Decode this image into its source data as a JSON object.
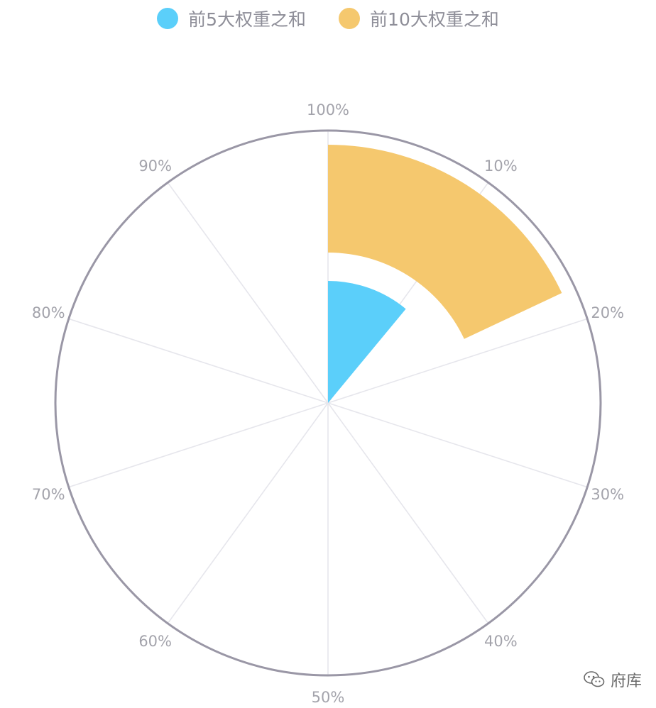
{
  "chart_data": {
    "type": "polar-bar",
    "series": [
      {
        "name": "前5大权重之和",
        "value": 11,
        "color": "#5bcffa"
      },
      {
        "name": "前10大权重之和",
        "value": 18,
        "color": "#f5c86e"
      }
    ],
    "tick_labels": [
      "100%",
      "10%",
      "20%",
      "30%",
      "40%",
      "50%",
      "60%",
      "70%",
      "80%",
      "90%"
    ],
    "angle_range": [
      0,
      100
    ],
    "legend_position": "top-center"
  },
  "legend": {
    "items": [
      {
        "label": "前5大权重之和",
        "color": "#5bcffa"
      },
      {
        "label": "前10大权重之和",
        "color": "#f5c86e"
      }
    ]
  },
  "watermark": {
    "label": "府库",
    "icon": "wechat-icon"
  }
}
